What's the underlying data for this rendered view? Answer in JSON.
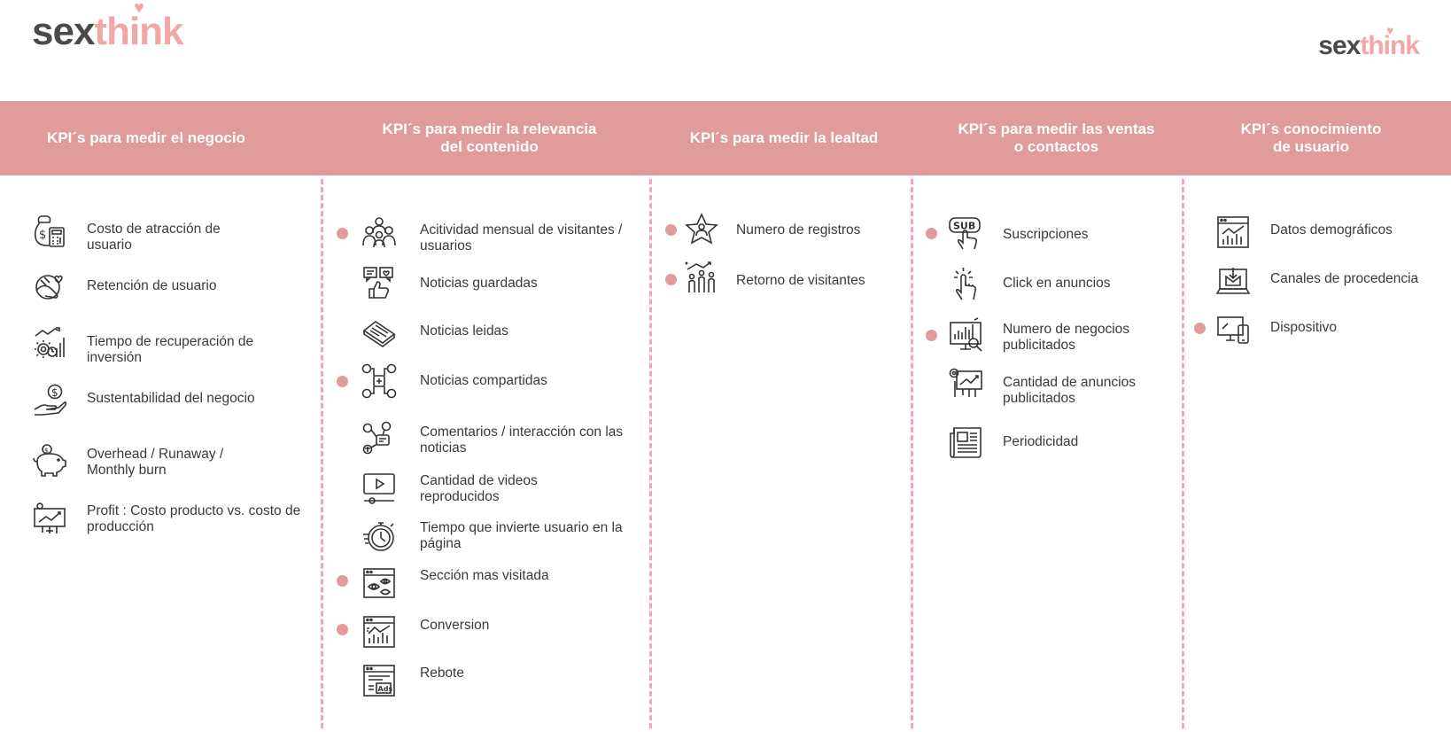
{
  "brand": {
    "part1": "sex",
    "part2": "think",
    "heart": "♥"
  },
  "accent_color": "#e29b9b",
  "divider_color": "#f5a3bd",
  "columns": [
    {
      "title": "KPI´s para medir el negocio",
      "items": [
        {
          "label": "Costo de atracción de\nusuario",
          "icon": "money-calculator-icon",
          "dot": false
        },
        {
          "label": "Retención de usuario",
          "icon": "hand-heart-icon",
          "dot": false
        },
        {
          "label": "Tiempo de recuperación de\ninversión",
          "icon": "gear-growth-chart-icon",
          "dot": false
        },
        {
          "label": "Sustentabilidad del negocio",
          "icon": "hand-coin-icon",
          "dot": false
        },
        {
          "label": "Overhead / Runaway /\nMonthly burn",
          "icon": "piggy-bank-icon",
          "dot": false
        },
        {
          "label": "Profit : Costo producto vs. costo de\nproducción",
          "icon": "presentation-board-icon",
          "dot": false
        }
      ]
    },
    {
      "title": "KPI´s para medir la relevancia\ndel contenido",
      "items": [
        {
          "label": "Acitividad mensual de visitantes /\nusuarios",
          "icon": "users-group-icon",
          "dot": true
        },
        {
          "label": "Noticias guardadas",
          "icon": "thumbs-up-chat-icon",
          "dot": false
        },
        {
          "label": "Noticias leidas",
          "icon": "newspaper-icon",
          "dot": false
        },
        {
          "label": "Noticias compartidas",
          "icon": "social-share-icon",
          "dot": true
        },
        {
          "label": "Comentarios / interacción con las\nnoticias",
          "icon": "comments-network-icon",
          "dot": false
        },
        {
          "label": "Cantidad de videos\nreproducidos",
          "icon": "video-player-icon",
          "dot": false
        },
        {
          "label": "Tiempo que invierte usuario en la\npágina",
          "icon": "stopwatch-icon",
          "dot": false
        },
        {
          "label": "Sección mas visitada",
          "icon": "browser-eye-icon",
          "dot": true
        },
        {
          "label": "Conversion",
          "icon": "browser-analytics-icon",
          "dot": true
        },
        {
          "label": "Rebote",
          "icon": "browser-ads-icon",
          "dot": false
        }
      ]
    },
    {
      "title": "KPI´s para medir la lealtad",
      "items": [
        {
          "label": "Numero de registros",
          "icon": "star-user-icon",
          "dot": true
        },
        {
          "label": "Retorno de visitantes",
          "icon": "users-growth-icon",
          "dot": true
        }
      ]
    },
    {
      "title": "KPI´s para medir las ventas\no contactos",
      "items": [
        {
          "label": "Suscripciones",
          "icon": "sub-button-click-icon",
          "dot": true
        },
        {
          "label": "Click en anuncios",
          "icon": "pointer-click-icon",
          "dot": false
        },
        {
          "label": "Numero de negocios\npublicitados",
          "icon": "monitor-search-icon",
          "dot": true
        },
        {
          "label": "Cantidad de anuncios\npublicitados",
          "icon": "presentation-chart-icon",
          "dot": false
        },
        {
          "label": "Periodicidad",
          "icon": "newspaper-columns-icon",
          "dot": false
        }
      ]
    },
    {
      "title": "KPI´s conocimiento\nde usuario",
      "items": [
        {
          "label": "Datos demográficos",
          "icon": "browser-chart-icon",
          "dot": false
        },
        {
          "label": "Canales de procedencia",
          "icon": "laptop-mail-icon",
          "dot": false
        },
        {
          "label": "Dispositivo",
          "icon": "devices-icon",
          "dot": true
        }
      ]
    }
  ]
}
